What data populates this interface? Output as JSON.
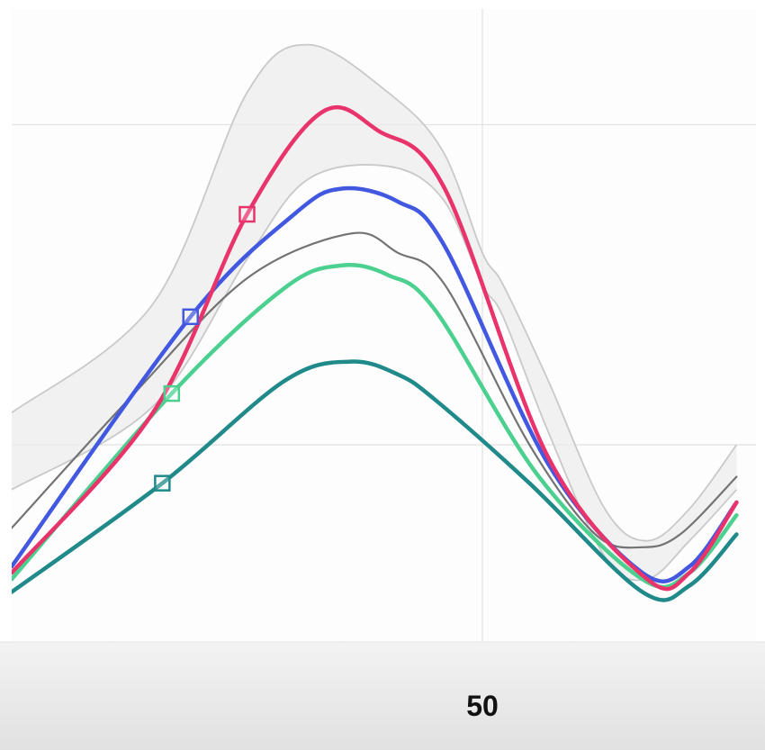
{
  "chart_data": {
    "type": "line",
    "x_ticks": [
      "50"
    ],
    "grid": true,
    "band": {
      "x": [
        -5,
        10,
        20,
        26.5,
        35,
        40.75,
        45,
        47.2,
        52,
        58,
        62.5,
        67,
        72
      ],
      "upper": [
        5,
        22,
        55,
        62.5,
        55,
        46,
        30,
        25,
        10,
        -10,
        -15,
        -10,
        0
      ],
      "lower": [
        -7,
        6,
        29,
        41.5,
        43.5,
        38.5,
        25,
        20,
        2,
        -17.5,
        -21,
        -15,
        -7
      ]
    },
    "series": [
      {
        "color": "#e8336b",
        "line_width": 4.5,
        "marker_x": 20,
        "x": [
          -5,
          10,
          20,
          28,
          34,
          41,
          52,
          62.5,
          67,
          72
        ],
        "y": [
          -20,
          5,
          36,
          52,
          49,
          40,
          -2,
          -21,
          -20,
          -9
        ]
      },
      {
        "color": "#4258e0",
        "line_width": 4.5,
        "marker_x": 14,
        "x": [
          -5,
          14,
          25,
          30,
          36,
          41,
          52,
          62,
          67,
          72
        ],
        "y": [
          -19,
          20,
          36,
          40,
          38,
          31,
          -3,
          -20,
          -19,
          -9
        ]
      },
      {
        "color": "#4cd08f",
        "line_width": 4.5,
        "marker_x": 12,
        "x": [
          -5,
          12,
          24,
          30,
          35,
          40,
          51,
          62,
          67,
          72
        ],
        "y": [
          -21,
          8,
          24.5,
          28,
          26.5,
          21,
          -5,
          -21,
          -20,
          -11
        ]
      },
      {
        "color": "#1f8a89",
        "line_width": 4.5,
        "marker_x": 11,
        "x": [
          -5,
          11,
          24,
          31,
          36,
          40,
          50,
          62,
          67,
          72
        ],
        "y": [
          -23,
          -6,
          10,
          13,
          11,
          7,
          -6,
          -23,
          -22,
          -14
        ]
      },
      {
        "color": "#737373",
        "line_width": 2.2,
        "x": [
          -5,
          8,
          20,
          31,
          36,
          41,
          50,
          57,
          62,
          66,
          72
        ],
        "y": [
          -13,
          8,
          26,
          33,
          30,
          25,
          0,
          -14,
          -16,
          -14,
          -5
        ]
      }
    ]
  }
}
